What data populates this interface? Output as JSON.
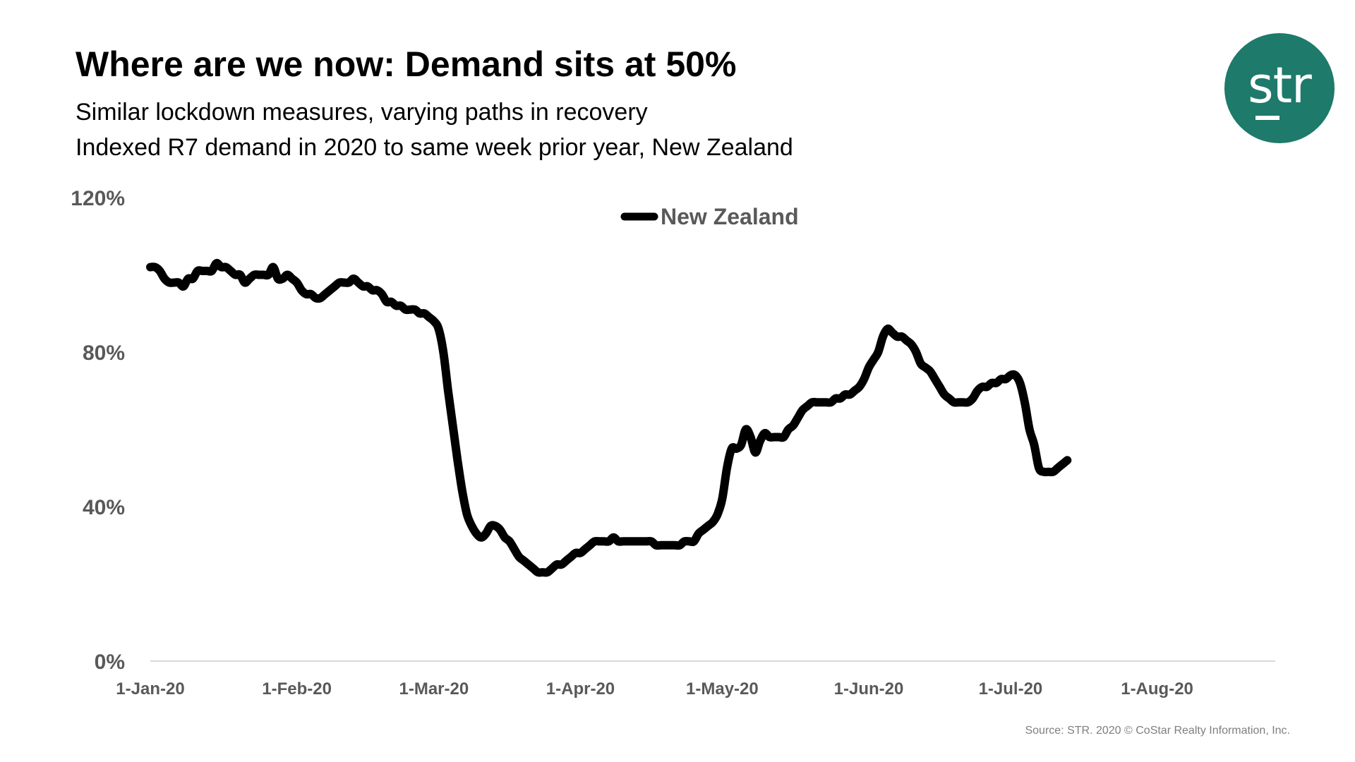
{
  "header": {
    "title": "Where are we now: Demand sits at 50%",
    "subtitle_line1": "Similar lockdown measures, varying paths in recovery",
    "subtitle_line2": "Indexed R7 demand in 2020 to same week prior year, New Zealand"
  },
  "logo": {
    "text": "str",
    "color": "#1e7a6a"
  },
  "source": "Source: STR. 2020 © CoStar Realty Information, Inc.",
  "chart_data": {
    "type": "line",
    "title": "Indexed R7 demand in 2020 to same week prior year, New Zealand",
    "xlabel": "",
    "ylabel": "",
    "ylim": [
      0,
      120
    ],
    "yticks": [
      0,
      40,
      80,
      120
    ],
    "ytick_labels": [
      "0%",
      "40%",
      "80%",
      "120%"
    ],
    "xlim": [
      "2020-01-01",
      "2020-08-27"
    ],
    "xtick_labels": [
      "1-Jan-20",
      "1-Feb-20",
      "1-Mar-20",
      "1-Apr-20",
      "1-May-20",
      "1-Jun-20",
      "1-Jul-20",
      "1-Aug-20"
    ],
    "xtick_days": [
      0,
      31,
      60,
      91,
      121,
      152,
      182,
      213
    ],
    "grid": false,
    "legend_position": "top-center",
    "series": [
      {
        "name": "New Zealand",
        "color": "#000000",
        "points": [
          [
            0,
            102
          ],
          [
            1,
            102
          ],
          [
            2,
            101
          ],
          [
            3,
            99
          ],
          [
            4,
            98
          ],
          [
            5,
            98
          ],
          [
            6,
            98
          ],
          [
            7,
            97
          ],
          [
            8,
            99
          ],
          [
            9,
            99
          ],
          [
            10,
            101
          ],
          [
            11,
            101
          ],
          [
            12,
            101
          ],
          [
            13,
            101
          ],
          [
            14,
            103
          ],
          [
            15,
            102
          ],
          [
            16,
            102
          ],
          [
            17,
            101
          ],
          [
            18,
            100
          ],
          [
            19,
            100
          ],
          [
            20,
            98
          ],
          [
            21,
            99
          ],
          [
            22,
            100
          ],
          [
            23,
            100
          ],
          [
            24,
            100
          ],
          [
            25,
            100
          ],
          [
            26,
            102
          ],
          [
            27,
            99
          ],
          [
            28,
            99
          ],
          [
            29,
            100
          ],
          [
            30,
            99
          ],
          [
            31,
            98
          ],
          [
            32,
            96
          ],
          [
            33,
            95
          ],
          [
            34,
            95
          ],
          [
            35,
            94
          ],
          [
            36,
            94
          ],
          [
            37,
            95
          ],
          [
            38,
            96
          ],
          [
            39,
            97
          ],
          [
            40,
            98
          ],
          [
            41,
            98
          ],
          [
            42,
            98
          ],
          [
            43,
            99
          ],
          [
            44,
            98
          ],
          [
            45,
            97
          ],
          [
            46,
            97
          ],
          [
            47,
            96
          ],
          [
            48,
            96
          ],
          [
            49,
            95
          ],
          [
            50,
            93
          ],
          [
            51,
            93
          ],
          [
            52,
            92
          ],
          [
            53,
            92
          ],
          [
            54,
            91
          ],
          [
            55,
            91
          ],
          [
            56,
            91
          ],
          [
            57,
            90
          ],
          [
            58,
            90
          ],
          [
            59,
            89
          ],
          [
            60,
            88
          ],
          [
            61,
            86
          ],
          [
            62,
            80
          ],
          [
            63,
            70
          ],
          [
            64,
            61
          ],
          [
            65,
            52
          ],
          [
            66,
            44
          ],
          [
            67,
            38
          ],
          [
            68,
            35
          ],
          [
            69,
            33
          ],
          [
            70,
            32
          ],
          [
            71,
            33
          ],
          [
            72,
            35
          ],
          [
            73,
            35
          ],
          [
            74,
            34
          ],
          [
            75,
            32
          ],
          [
            76,
            31
          ],
          [
            77,
            29
          ],
          [
            78,
            27
          ],
          [
            79,
            26
          ],
          [
            80,
            25
          ],
          [
            81,
            24
          ],
          [
            82,
            23
          ],
          [
            83,
            23
          ],
          [
            84,
            23
          ],
          [
            85,
            24
          ],
          [
            86,
            25
          ],
          [
            87,
            25
          ],
          [
            88,
            26
          ],
          [
            89,
            27
          ],
          [
            90,
            28
          ],
          [
            91,
            28
          ],
          [
            92,
            29
          ],
          [
            93,
            30
          ],
          [
            94,
            31
          ],
          [
            95,
            31
          ],
          [
            96,
            31
          ],
          [
            97,
            31
          ],
          [
            98,
            32
          ],
          [
            99,
            31
          ],
          [
            100,
            31
          ],
          [
            101,
            31
          ],
          [
            102,
            31
          ],
          [
            103,
            31
          ],
          [
            104,
            31
          ],
          [
            105,
            31
          ],
          [
            106,
            31
          ],
          [
            107,
            30
          ],
          [
            108,
            30
          ],
          [
            109,
            30
          ],
          [
            110,
            30
          ],
          [
            111,
            30
          ],
          [
            112,
            30
          ],
          [
            113,
            31
          ],
          [
            114,
            31
          ],
          [
            115,
            31
          ],
          [
            116,
            33
          ],
          [
            117,
            34
          ],
          [
            118,
            35
          ],
          [
            119,
            36
          ],
          [
            120,
            38
          ],
          [
            121,
            42
          ],
          [
            122,
            50
          ],
          [
            123,
            55
          ],
          [
            124,
            55
          ],
          [
            125,
            56
          ],
          [
            126,
            60
          ],
          [
            127,
            58
          ],
          [
            128,
            54
          ],
          [
            129,
            57
          ],
          [
            130,
            59
          ],
          [
            131,
            58
          ],
          [
            132,
            58
          ],
          [
            133,
            58
          ],
          [
            134,
            58
          ],
          [
            135,
            60
          ],
          [
            136,
            61
          ],
          [
            137,
            63
          ],
          [
            138,
            65
          ],
          [
            139,
            66
          ],
          [
            140,
            67
          ],
          [
            141,
            67
          ],
          [
            142,
            67
          ],
          [
            143,
            67
          ],
          [
            144,
            67
          ],
          [
            145,
            68
          ],
          [
            146,
            68
          ],
          [
            147,
            69
          ],
          [
            148,
            69
          ],
          [
            149,
            70
          ],
          [
            150,
            71
          ],
          [
            151,
            73
          ],
          [
            152,
            76
          ],
          [
            153,
            78
          ],
          [
            154,
            80
          ],
          [
            155,
            84
          ],
          [
            156,
            86
          ],
          [
            157,
            85
          ],
          [
            158,
            84
          ],
          [
            159,
            84
          ],
          [
            160,
            83
          ],
          [
            161,
            82
          ],
          [
            162,
            80
          ],
          [
            163,
            77
          ],
          [
            164,
            76
          ],
          [
            165,
            75
          ],
          [
            166,
            73
          ],
          [
            167,
            71
          ],
          [
            168,
            69
          ],
          [
            169,
            68
          ],
          [
            170,
            67
          ],
          [
            171,
            67
          ],
          [
            172,
            67
          ],
          [
            173,
            67
          ],
          [
            174,
            68
          ],
          [
            175,
            70
          ],
          [
            176,
            71
          ],
          [
            177,
            71
          ],
          [
            178,
            72
          ],
          [
            179,
            72
          ],
          [
            180,
            73
          ],
          [
            181,
            73
          ],
          [
            182,
            74
          ],
          [
            183,
            74
          ],
          [
            184,
            72
          ],
          [
            185,
            67
          ],
          [
            186,
            60
          ],
          [
            187,
            56
          ],
          [
            188,
            50
          ],
          [
            189,
            49
          ],
          [
            190,
            49
          ],
          [
            191,
            49
          ],
          [
            192,
            50
          ],
          [
            193,
            51
          ],
          [
            194,
            52
          ]
        ]
      }
    ]
  }
}
